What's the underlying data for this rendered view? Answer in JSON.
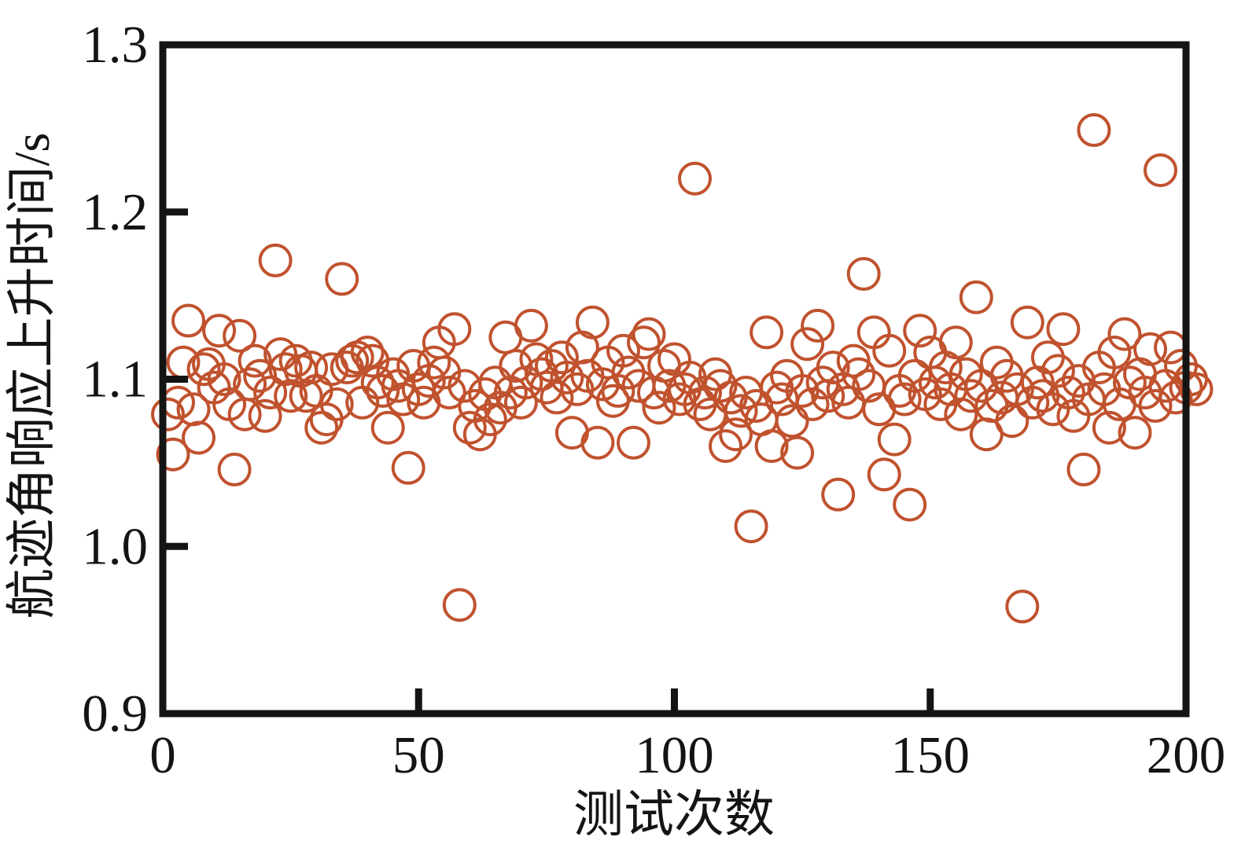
{
  "figure": {
    "background": "#ffffff"
  },
  "chart_data": {
    "type": "scatter",
    "title": "",
    "xlabel": "测试次数",
    "ylabel": "航迹角响应上升时间/s",
    "xlim": [
      0,
      200
    ],
    "ylim": [
      0.9,
      1.3
    ],
    "xticks": [
      "0",
      "50",
      "100",
      "150",
      "200"
    ],
    "yticks": [
      "0.9",
      "1.0",
      "1.1",
      "1.2",
      "1.3"
    ],
    "grid": false,
    "legend": "none",
    "axis_color": "#141414",
    "marker": {
      "shape": "open-circle",
      "color": "#c0522e",
      "radius_px": 19.5,
      "stroke_px": 4
    },
    "points": [
      [
        1,
        1.079
      ],
      [
        2,
        1.055
      ],
      [
        3,
        1.086
      ],
      [
        4,
        1.11
      ],
      [
        5,
        1.135
      ],
      [
        6,
        1.082
      ],
      [
        7,
        1.065
      ],
      [
        8,
        1.106
      ],
      [
        9,
        1.109
      ],
      [
        10,
        1.095
      ],
      [
        11,
        1.129
      ],
      [
        12,
        1.1
      ],
      [
        13,
        1.085
      ],
      [
        14,
        1.046
      ],
      [
        15,
        1.126
      ],
      [
        16,
        1.079
      ],
      [
        17,
        1.097
      ],
      [
        18,
        1.111
      ],
      [
        19,
        1.102
      ],
      [
        20,
        1.078
      ],
      [
        21,
        1.092
      ],
      [
        22,
        1.171
      ],
      [
        23,
        1.115
      ],
      [
        24,
        1.106
      ],
      [
        25,
        1.09
      ],
      [
        26,
        1.111
      ],
      [
        27,
        1.105
      ],
      [
        28,
        1.09
      ],
      [
        29,
        1.107
      ],
      [
        30,
        1.093
      ],
      [
        31,
        1.071
      ],
      [
        32,
        1.076
      ],
      [
        33,
        1.106
      ],
      [
        34,
        1.085
      ],
      [
        35,
        1.16
      ],
      [
        36,
        1.107
      ],
      [
        37,
        1.111
      ],
      [
        38,
        1.113
      ],
      [
        39,
        1.086
      ],
      [
        40,
        1.116
      ],
      [
        41,
        1.111
      ],
      [
        42,
        1.098
      ],
      [
        43,
        1.093
      ],
      [
        44,
        1.071
      ],
      [
        45,
        1.103
      ],
      [
        46,
        1.096
      ],
      [
        47,
        1.088
      ],
      [
        48,
        1.047
      ],
      [
        49,
        1.108
      ],
      [
        50,
        1.094
      ],
      [
        51,
        1.086
      ],
      [
        52,
        1.099
      ],
      [
        53,
        1.11
      ],
      [
        54,
        1.122
      ],
      [
        55,
        1.104
      ],
      [
        56,
        1.092
      ],
      [
        57,
        1.13
      ],
      [
        58,
        0.965
      ],
      [
        59,
        1.096
      ],
      [
        60,
        1.071
      ],
      [
        61,
        1.084
      ],
      [
        62,
        1.067
      ],
      [
        63,
        1.091
      ],
      [
        64,
        1.076
      ],
      [
        65,
        1.098
      ],
      [
        66,
        1.083
      ],
      [
        67,
        1.125
      ],
      [
        68,
        1.092
      ],
      [
        69,
        1.108
      ],
      [
        70,
        1.086
      ],
      [
        71,
        1.098
      ],
      [
        72,
        1.132
      ],
      [
        73,
        1.112
      ],
      [
        74,
        1.103
      ],
      [
        75,
        1.095
      ],
      [
        76,
        1.108
      ],
      [
        77,
        1.089
      ],
      [
        78,
        1.113
      ],
      [
        79,
        1.101
      ],
      [
        80,
        1.068
      ],
      [
        81,
        1.094
      ],
      [
        82,
        1.119
      ],
      [
        83,
        1.102
      ],
      [
        84,
        1.134
      ],
      [
        85,
        1.062
      ],
      [
        86,
        1.097
      ],
      [
        87,
        1.11
      ],
      [
        88,
        1.087
      ],
      [
        89,
        1.093
      ],
      [
        90,
        1.117
      ],
      [
        91,
        1.104
      ],
      [
        92,
        1.062
      ],
      [
        93,
        1.096
      ],
      [
        94,
        1.122
      ],
      [
        95,
        1.127
      ],
      [
        96,
        1.092
      ],
      [
        97,
        1.083
      ],
      [
        98,
        1.108
      ],
      [
        99,
        1.096
      ],
      [
        100,
        1.112
      ],
      [
        101,
        1.088
      ],
      [
        102,
        1.094
      ],
      [
        103,
        1.101
      ],
      [
        104,
        1.22
      ],
      [
        105,
        1.085
      ],
      [
        106,
        1.092
      ],
      [
        107,
        1.079
      ],
      [
        108,
        1.103
      ],
      [
        109,
        1.096
      ],
      [
        110,
        1.06
      ],
      [
        111,
        1.089
      ],
      [
        112,
        1.067
      ],
      [
        113,
        1.081
      ],
      [
        114,
        1.092
      ],
      [
        115,
        1.012
      ],
      [
        116,
        1.084
      ],
      [
        117,
        1.076
      ],
      [
        118,
        1.128
      ],
      [
        119,
        1.06
      ],
      [
        120,
        1.095
      ],
      [
        121,
        1.088
      ],
      [
        122,
        1.102
      ],
      [
        123,
        1.075
      ],
      [
        124,
        1.056
      ],
      [
        125,
        1.093
      ],
      [
        126,
        1.121
      ],
      [
        127,
        1.085
      ],
      [
        128,
        1.132
      ],
      [
        129,
        1.098
      ],
      [
        130,
        1.09
      ],
      [
        131,
        1.107
      ],
      [
        132,
        1.031
      ],
      [
        133,
        1.094
      ],
      [
        134,
        1.086
      ],
      [
        135,
        1.111
      ],
      [
        136,
        1.103
      ],
      [
        137,
        1.163
      ],
      [
        138,
        1.096
      ],
      [
        139,
        1.128
      ],
      [
        140,
        1.082
      ],
      [
        141,
        1.043
      ],
      [
        142,
        1.117
      ],
      [
        143,
        1.064
      ],
      [
        144,
        1.093
      ],
      [
        145,
        1.088
      ],
      [
        146,
        1.025
      ],
      [
        147,
        1.102
      ],
      [
        148,
        1.129
      ],
      [
        149,
        1.091
      ],
      [
        150,
        1.116
      ],
      [
        151,
        1.098
      ],
      [
        152,
        1.085
      ],
      [
        153,
        1.107
      ],
      [
        154,
        1.094
      ],
      [
        155,
        1.122
      ],
      [
        156,
        1.079
      ],
      [
        157,
        1.103
      ],
      [
        158,
        1.09
      ],
      [
        159,
        1.149
      ],
      [
        160,
        1.096
      ],
      [
        161,
        1.067
      ],
      [
        162,
        1.084
      ],
      [
        163,
        1.11
      ],
      [
        164,
        1.089
      ],
      [
        165,
        1.102
      ],
      [
        166,
        1.075
      ],
      [
        167,
        1.094
      ],
      [
        168,
        0.964
      ],
      [
        169,
        1.134
      ],
      [
        170,
        1.086
      ],
      [
        171,
        1.098
      ],
      [
        172,
        1.09
      ],
      [
        173,
        1.113
      ],
      [
        174,
        1.082
      ],
      [
        175,
        1.105
      ],
      [
        176,
        1.13
      ],
      [
        177,
        1.092
      ],
      [
        178,
        1.078
      ],
      [
        179,
        1.099
      ],
      [
        180,
        1.046
      ],
      [
        181,
        1.088
      ],
      [
        182,
        1.249
      ],
      [
        183,
        1.107
      ],
      [
        184,
        1.094
      ],
      [
        185,
        1.071
      ],
      [
        186,
        1.116
      ],
      [
        187,
        1.085
      ],
      [
        188,
        1.127
      ],
      [
        189,
        1.098
      ],
      [
        190,
        1.068
      ],
      [
        191,
        1.103
      ],
      [
        192,
        1.092
      ],
      [
        193,
        1.118
      ],
      [
        194,
        1.084
      ],
      [
        195,
        1.225
      ],
      [
        196,
        1.096
      ],
      [
        197,
        1.119
      ],
      [
        198,
        1.089
      ],
      [
        199,
        1.108
      ],
      [
        200,
        1.095
      ],
      [
        201,
        1.1
      ],
      [
        202,
        1.094
      ]
    ]
  }
}
